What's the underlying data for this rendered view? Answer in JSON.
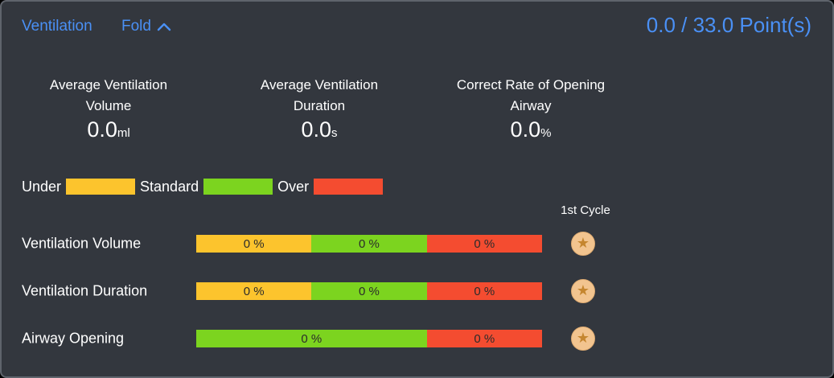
{
  "header": {
    "title": "Ventilation",
    "fold_label": "Fold",
    "points": "0.0 / 33.0 Point(s)"
  },
  "stats": [
    {
      "label_line1": "Average Ventilation",
      "label_line2": "Volume",
      "value": "0.0",
      "unit": "ml"
    },
    {
      "label_line1": "Average Ventilation",
      "label_line2": "Duration",
      "value": "0.0",
      "unit": "s"
    },
    {
      "label_line1": "Correct Rate of Opening",
      "label_line2": "Airway",
      "value": "0.0",
      "unit": "%"
    }
  ],
  "legend": [
    {
      "label": "Under",
      "color": "#fcc42d"
    },
    {
      "label": "Standard",
      "color": "#7cd41f"
    },
    {
      "label": "Over",
      "color": "#f44c30"
    }
  ],
  "cycle_header": "1st Cycle",
  "rows": [
    {
      "label": "Ventilation Volume",
      "segments": [
        {
          "text": "0 %",
          "color": "#fcc42d",
          "width_pct": 33.33
        },
        {
          "text": "0 %",
          "color": "#7cd41f",
          "width_pct": 33.33
        },
        {
          "text": "0 %",
          "color": "#f44c30",
          "width_pct": 33.34
        }
      ]
    },
    {
      "label": "Ventilation Duration",
      "segments": [
        {
          "text": "0 %",
          "color": "#fcc42d",
          "width_pct": 33.33
        },
        {
          "text": "0 %",
          "color": "#7cd41f",
          "width_pct": 33.33
        },
        {
          "text": "0 %",
          "color": "#f44c30",
          "width_pct": 33.34
        }
      ]
    },
    {
      "label": "Airway Opening",
      "segments": [
        {
          "text": "0 %",
          "color": "#7cd41f",
          "width_pct": 66.67
        },
        {
          "text": "0 %",
          "color": "#f44c30",
          "width_pct": 33.33
        }
      ]
    }
  ],
  "star_icon": "★",
  "colors": {
    "accent_blue": "#4a90f5",
    "panel_bg": "#33373e",
    "panel_border": "#5f646c",
    "bar_text": "#2b2b2b",
    "star_circle_bg": "#f2c48f",
    "star_glyph": "#c5862f"
  }
}
